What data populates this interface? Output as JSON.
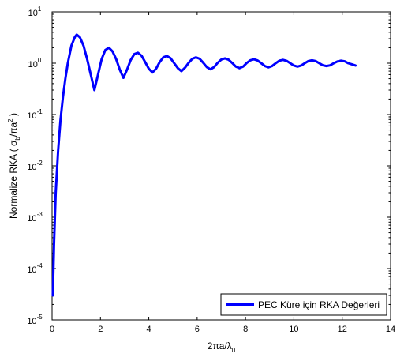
{
  "chart_data": {
    "type": "line",
    "title": "",
    "xlabel": {
      "base": "2πa/λ",
      "sub": "0"
    },
    "ylabel": {
      "pre": "Normalize RKA ( σ",
      "sub": "b",
      "mid": "/πa",
      "sup": "2",
      "post": " )"
    },
    "xlim": [
      0,
      14
    ],
    "ylim": [
      1e-05,
      10
    ],
    "yscale": "log",
    "xticks": [
      0,
      2,
      4,
      6,
      8,
      10,
      12,
      14
    ],
    "xtick_labels": [
      "0",
      "2",
      "4",
      "6",
      "8",
      "10",
      "12",
      "14"
    ],
    "yticks": [
      {
        "value": 10,
        "base": "10",
        "exp": "1"
      },
      {
        "value": 1,
        "base": "10",
        "exp": "0"
      },
      {
        "value": 0.1,
        "base": "10",
        "exp": "-1"
      },
      {
        "value": 0.01,
        "base": "10",
        "exp": "-2"
      },
      {
        "value": 0.001,
        "base": "10",
        "exp": "-3"
      },
      {
        "value": 0.0001,
        "base": "10",
        "exp": "-4"
      },
      {
        "value": 1e-05,
        "base": "10",
        "exp": "-5"
      }
    ],
    "grid": false,
    "legend": {
      "position": "bottom-right"
    },
    "series": [
      {
        "name": "PEC Küre için RKA Değerleri",
        "color": "#0000ff",
        "x": [
          0.03,
          0.08,
          0.15,
          0.25,
          0.35,
          0.45,
          0.55,
          0.65,
          0.8,
          0.95,
          1.02,
          1.15,
          1.3,
          1.45,
          1.6,
          1.75,
          1.9,
          2.05,
          2.2,
          2.35,
          2.5,
          2.65,
          2.8,
          2.95,
          3.1,
          3.25,
          3.4,
          3.55,
          3.7,
          3.85,
          4.0,
          4.15,
          4.3,
          4.45,
          4.6,
          4.75,
          4.9,
          5.05,
          5.2,
          5.35,
          5.5,
          5.65,
          5.8,
          5.95,
          6.1,
          6.25,
          6.4,
          6.55,
          6.7,
          6.85,
          7.0,
          7.15,
          7.3,
          7.45,
          7.6,
          7.75,
          7.9,
          8.05,
          8.2,
          8.35,
          8.5,
          8.65,
          8.8,
          8.95,
          9.1,
          9.25,
          9.4,
          9.55,
          9.7,
          9.85,
          10.0,
          10.15,
          10.3,
          10.45,
          10.6,
          10.75,
          10.9,
          11.05,
          11.2,
          11.35,
          11.5,
          11.65,
          11.8,
          11.95,
          12.1,
          12.25,
          12.4,
          12.55
        ],
        "y": [
          3e-05,
          0.0003,
          0.003,
          0.02,
          0.08,
          0.22,
          0.5,
          1.0,
          2.2,
          3.3,
          3.6,
          3.2,
          2.2,
          1.2,
          0.6,
          0.3,
          0.6,
          1.2,
          1.8,
          2.0,
          1.7,
          1.2,
          0.75,
          0.52,
          0.75,
          1.15,
          1.5,
          1.6,
          1.4,
          1.05,
          0.78,
          0.66,
          0.78,
          1.05,
          1.3,
          1.38,
          1.25,
          1.0,
          0.8,
          0.7,
          0.82,
          1.02,
          1.22,
          1.3,
          1.22,
          1.02,
          0.84,
          0.76,
          0.84,
          1.02,
          1.18,
          1.24,
          1.17,
          1.01,
          0.86,
          0.8,
          0.86,
          1.01,
          1.14,
          1.19,
          1.13,
          1.0,
          0.88,
          0.83,
          0.88,
          1.0,
          1.12,
          1.16,
          1.11,
          1.0,
          0.9,
          0.86,
          0.9,
          1.0,
          1.1,
          1.14,
          1.1,
          1.0,
          0.91,
          0.88,
          0.91,
          1.0,
          1.08,
          1.12,
          1.09,
          1.0,
          0.95,
          0.9
        ]
      }
    ]
  }
}
